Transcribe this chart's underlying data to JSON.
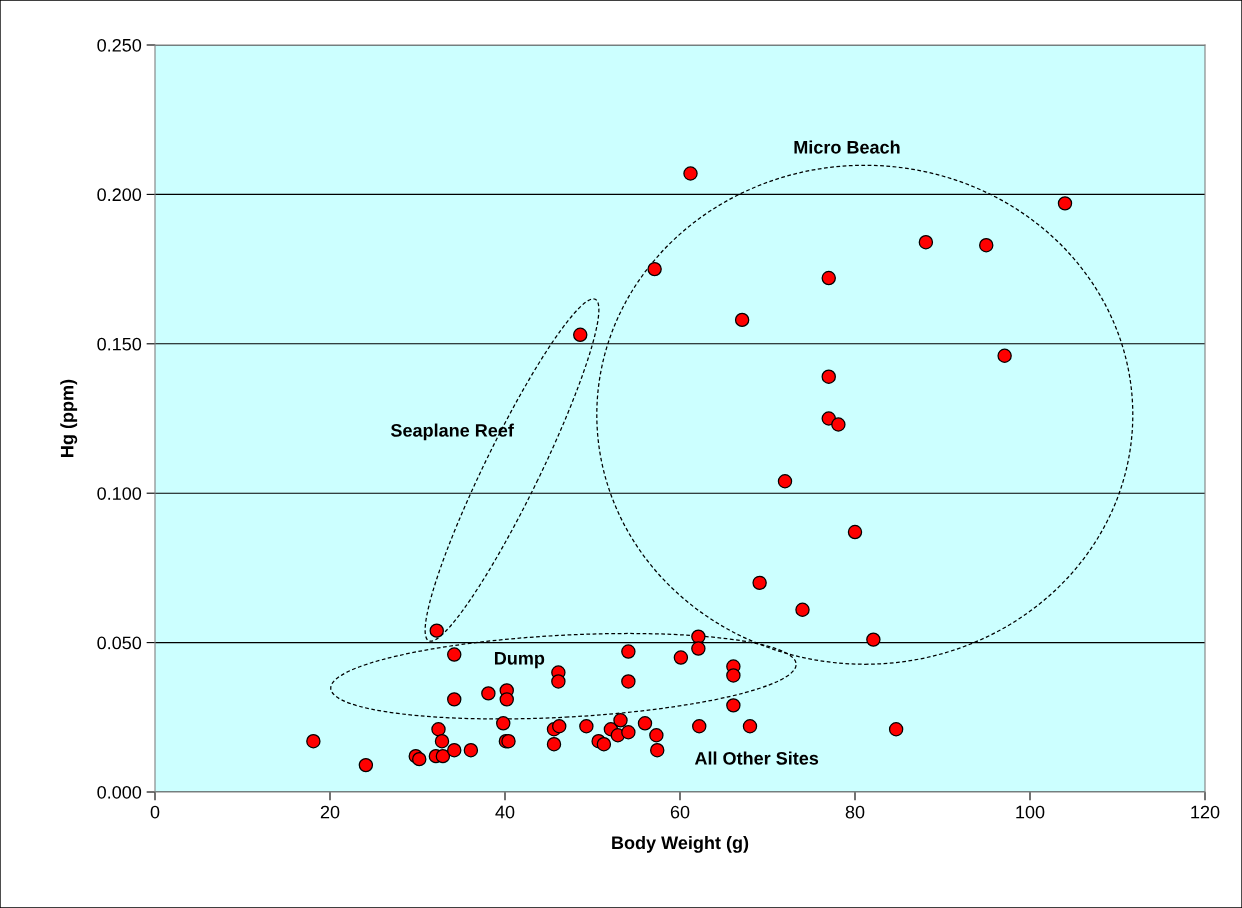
{
  "chart_data": {
    "type": "scatter",
    "xlabel": "Body Weight (g)",
    "ylabel": "Hg (ppm)",
    "xlim": [
      0,
      120
    ],
    "xticks": [
      0,
      20,
      40,
      60,
      80,
      100,
      120
    ],
    "ylim": [
      0,
      0.25
    ],
    "yticks": [
      {
        "value": 0,
        "label": "0.000"
      },
      {
        "value": 0.05,
        "label": "0.050"
      },
      {
        "value": 0.1,
        "label": "0.100"
      },
      {
        "value": 0.15,
        "label": "0.150"
      },
      {
        "value": 0.2,
        "label": "0.200"
      },
      {
        "value": 0.25,
        "label": "0.250"
      }
    ],
    "grid": "y",
    "marker": "circle",
    "series": [
      {
        "color": "#ff0000",
        "x": [
          32.2,
          34.2,
          34.2,
          38.1,
          40.2,
          40.2,
          46.1,
          46.1,
          54.1,
          54.1,
          60.1,
          62.1,
          62.1,
          66.1,
          66.1,
          66.1,
          18.1,
          24.1,
          29.8,
          30.2,
          32.1,
          32.4,
          32.8,
          32.9,
          34.2,
          36.1,
          39.8,
          40.1,
          40.4,
          45.6,
          46.2,
          45.6,
          49.3,
          50.7,
          51.3,
          52.1,
          52.9,
          53.2,
          54.1,
          56.0,
          57.3,
          57.4,
          62.2,
          68.0,
          84.7,
          82.1,
          61.2,
          104.0,
          88.1,
          95.0,
          57.1,
          77.0,
          67.1,
          48.6,
          97.1,
          77.0,
          77.0,
          78.1,
          72.0,
          80.0,
          69.1,
          74.0
        ],
        "values": [
          0.054,
          0.046,
          0.031,
          0.033,
          0.034,
          0.031,
          0.04,
          0.037,
          0.047,
          0.037,
          0.045,
          0.052,
          0.048,
          0.042,
          0.039,
          0.029,
          0.017,
          0.009,
          0.012,
          0.011,
          0.012,
          0.021,
          0.017,
          0.012,
          0.014,
          0.014,
          0.023,
          0.017,
          0.017,
          0.021,
          0.022,
          0.016,
          0.022,
          0.017,
          0.016,
          0.021,
          0.019,
          0.024,
          0.02,
          0.023,
          0.019,
          0.014,
          0.022,
          0.022,
          0.021,
          0.051,
          0.207,
          0.197,
          0.184,
          0.183,
          0.175,
          0.172,
          0.158,
          0.153,
          0.146,
          0.139,
          0.125,
          0.123,
          0.104,
          0.087,
          0.07,
          0.061
        ]
      }
    ],
    "annotations": [
      "Micro Beach",
      "Seaplane Reef",
      "Dump",
      "All Other Sites"
    ]
  }
}
